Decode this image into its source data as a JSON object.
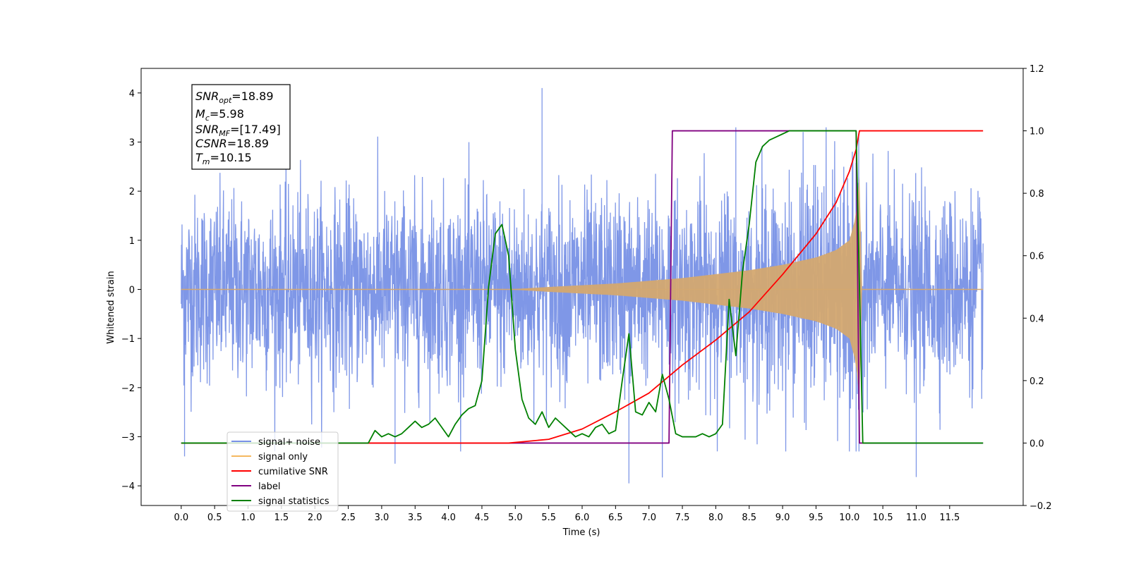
{
  "chart_data": {
    "type": "line",
    "xlabel": "Time (s)",
    "ylabel": "Whitened strain",
    "xlim": [
      -0.6,
      12.6
    ],
    "ylim": [
      -4.4,
      4.5
    ],
    "y2lim": [
      -0.2,
      1.2
    ],
    "x_ticks": [
      "0.0",
      "0.5",
      "1.0",
      "1.5",
      "2.0",
      "2.5",
      "3.0",
      "3.5",
      "4.0",
      "4.5",
      "5.0",
      "5.5",
      "6.0",
      "6.5",
      "7.0",
      "7.5",
      "8.0",
      "8.5",
      "9.0",
      "9.5",
      "10.0",
      "10.5",
      "11.0",
      "11.5"
    ],
    "y_ticks": [
      "4",
      "3",
      "2",
      "1",
      "0",
      "−1",
      "−2",
      "−3",
      "−4"
    ],
    "y2_ticks": [
      "1.2",
      "1.0",
      "0.8",
      "0.6",
      "0.4",
      "0.2",
      "0.0",
      "−0.2"
    ],
    "grid": false,
    "legend_position": "lower-left",
    "annotation": {
      "lines": [
        {
          "main": "SNR",
          "sub": "opt",
          "value": "=18.89"
        },
        {
          "main": "M",
          "sub": "c",
          "value": "=5.98"
        },
        {
          "main": "SNR",
          "sub": "MF",
          "value": "=[17.49]"
        },
        {
          "main": "CSNR",
          "sub": "",
          "value": "=18.89"
        },
        {
          "main": "T",
          "sub": "m",
          "value": "=10.15"
        }
      ]
    },
    "legend": [
      {
        "label": "signal+ noise",
        "color": "#7891e6"
      },
      {
        "label": "signal only",
        "color": "#f5b860"
      },
      {
        "label": "cumilative SNR",
        "color": "#ff0000"
      },
      {
        "label": "label",
        "color": "#800080"
      },
      {
        "label": "signal statistics",
        "color": "#008000"
      }
    ],
    "series": [
      {
        "name": "signal+ noise",
        "axis": "left",
        "color": "#7891e6",
        "x_range": [
          0.0,
          12.0
        ],
        "noise_std": 0.95,
        "extreme_peaks": [
          [
            5.4,
            4.1
          ],
          [
            0.05,
            -3.4
          ],
          [
            6.7,
            -3.95
          ],
          [
            7.2,
            -3.83
          ],
          [
            11.0,
            -3.82
          ],
          [
            8.3,
            3.3
          ],
          [
            3.2,
            -3.55
          ],
          [
            10.1,
            -3.3
          ]
        ]
      },
      {
        "name": "signal only",
        "axis": "left",
        "color": "#d4a870",
        "type": "chirp_envelope",
        "start": 4.9,
        "merger": 10.15,
        "envelope": [
          [
            4.9,
            0.0
          ],
          [
            5.5,
            0.05
          ],
          [
            6.5,
            0.12
          ],
          [
            7.5,
            0.23
          ],
          [
            8.5,
            0.39
          ],
          [
            9.0,
            0.5
          ],
          [
            9.5,
            0.65
          ],
          [
            9.8,
            0.8
          ],
          [
            10.0,
            1.0
          ],
          [
            10.1,
            1.5
          ],
          [
            10.15,
            2.3
          ]
        ]
      },
      {
        "name": "cumilative SNR",
        "axis": "right",
        "color": "#ff0000",
        "x": [
          0.0,
          4.9,
          5.5,
          6.0,
          6.5,
          7.0,
          7.5,
          8.0,
          8.5,
          9.0,
          9.5,
          9.8,
          10.0,
          10.1,
          10.15,
          12.0
        ],
        "y": [
          0.0,
          0.0,
          0.012,
          0.045,
          0.1,
          0.16,
          0.25,
          0.33,
          0.42,
          0.54,
          0.67,
          0.77,
          0.87,
          0.94,
          1.0,
          1.0
        ]
      },
      {
        "name": "label",
        "axis": "right",
        "color": "#800080",
        "x": [
          0.0,
          7.3,
          7.35,
          10.1,
          10.15,
          12.0
        ],
        "y": [
          0.0,
          0.0,
          1.0,
          1.0,
          0.0,
          0.0
        ]
      },
      {
        "name": "signal statistics",
        "axis": "right",
        "color": "#008000",
        "x": [
          0.0,
          2.8,
          2.9,
          3.0,
          3.1,
          3.2,
          3.3,
          3.4,
          3.5,
          3.6,
          3.7,
          3.8,
          3.9,
          4.0,
          4.1,
          4.2,
          4.3,
          4.4,
          4.5,
          4.6,
          4.7,
          4.8,
          4.9,
          5.0,
          5.1,
          5.2,
          5.3,
          5.4,
          5.5,
          5.6,
          5.7,
          5.8,
          5.9,
          6.0,
          6.1,
          6.2,
          6.3,
          6.4,
          6.5,
          6.6,
          6.7,
          6.8,
          6.9,
          7.0,
          7.1,
          7.2,
          7.3,
          7.4,
          7.5,
          7.6,
          7.7,
          7.8,
          7.9,
          8.0,
          8.1,
          8.2,
          8.3,
          8.4,
          8.5,
          8.6,
          8.7,
          8.8,
          8.9,
          9.0,
          9.1,
          9.2,
          9.5,
          10.0,
          10.1,
          10.15,
          10.2,
          12.0
        ],
        "y": [
          0.0,
          0.0,
          0.04,
          0.02,
          0.03,
          0.02,
          0.03,
          0.05,
          0.07,
          0.05,
          0.06,
          0.08,
          0.05,
          0.02,
          0.06,
          0.09,
          0.11,
          0.12,
          0.2,
          0.5,
          0.67,
          0.7,
          0.6,
          0.3,
          0.14,
          0.08,
          0.06,
          0.1,
          0.05,
          0.08,
          0.06,
          0.04,
          0.02,
          0.03,
          0.02,
          0.05,
          0.06,
          0.03,
          0.04,
          0.2,
          0.35,
          0.1,
          0.09,
          0.13,
          0.1,
          0.22,
          0.14,
          0.03,
          0.02,
          0.02,
          0.02,
          0.03,
          0.02,
          0.03,
          0.06,
          0.46,
          0.28,
          0.55,
          0.7,
          0.9,
          0.95,
          0.97,
          0.98,
          0.99,
          1.0,
          1.0,
          1.0,
          1.0,
          1.0,
          0.5,
          0.0,
          0.0
        ]
      }
    ]
  }
}
